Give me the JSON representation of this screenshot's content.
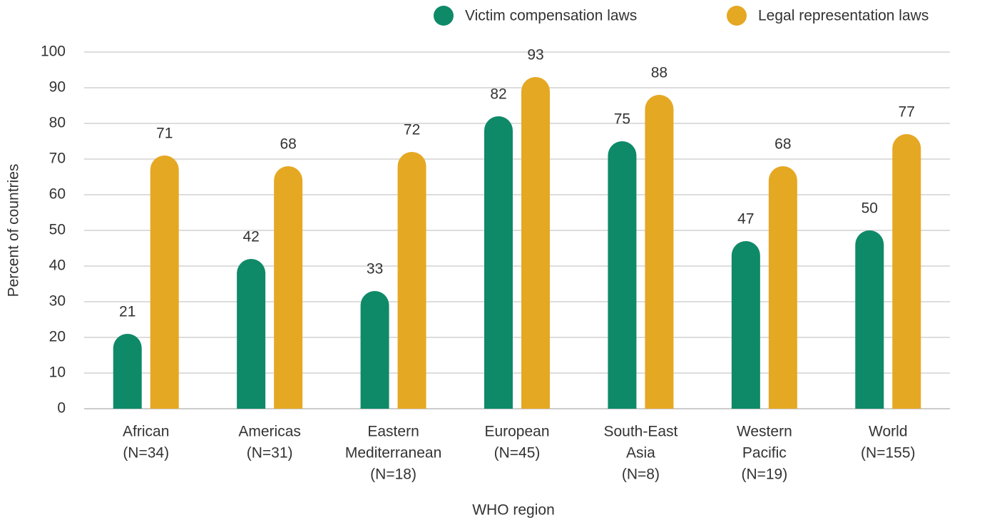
{
  "chart_data": {
    "type": "bar",
    "categories": [
      [
        "African",
        "(N=34)"
      ],
      [
        "Americas",
        "(N=31)"
      ],
      [
        "Eastern",
        "Mediterranean",
        "(N=18)"
      ],
      [
        "European",
        "(N=45)"
      ],
      [
        "South-East",
        "Asia",
        "(N=8)"
      ],
      [
        "Western",
        "Pacific",
        "(N=19)"
      ],
      [
        "World",
        "(N=155)"
      ]
    ],
    "series": [
      {
        "name": "Victim compensation laws",
        "color": "#0e8a68",
        "values": [
          21,
          42,
          33,
          82,
          75,
          47,
          50
        ]
      },
      {
        "name": "Legal representation laws",
        "color": "#e5a823",
        "values": [
          71,
          68,
          72,
          93,
          88,
          68,
          77
        ]
      }
    ],
    "ylim": [
      0,
      100
    ],
    "yticks": [
      0,
      10,
      20,
      30,
      40,
      50,
      60,
      70,
      80,
      90,
      100
    ],
    "ylabel": "Percent of countries",
    "xlabel": "WHO region",
    "grid": true,
    "legend": "top-right"
  }
}
